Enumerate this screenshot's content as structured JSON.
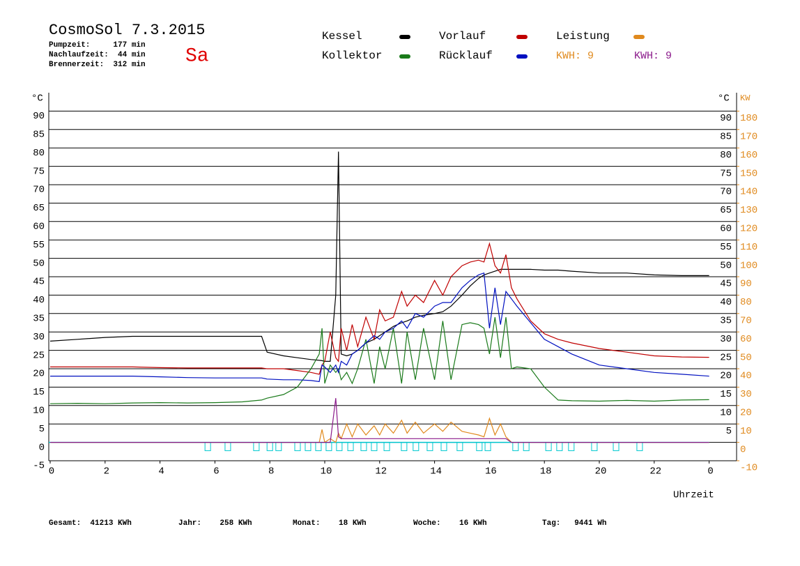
{
  "chart_data": {
    "type": "line",
    "title": "CosmoSol 7.3.2015",
    "info": [
      "Pumpzeit:     177 min",
      "Nachlaufzeit:  44 min",
      "Brennerzeit:  312 min"
    ],
    "day": "Sa",
    "kwh_labels": [
      {
        "text": "KWH: 9",
        "color": "#e08a1e"
      },
      {
        "text": "KWH: 9",
        "color": "#8b1a8b"
      }
    ],
    "totals": [
      "Gesamt:  41213 KWh",
      "Jahr:    258 KWh",
      "Monat:    18 KWh",
      "Woche:    16 KWh",
      "Tag:   9441 Wh"
    ],
    "xlabel": "Uhrzeit",
    "ylabel": "°C",
    "ylabel_right": "°C",
    "y2label": "KW",
    "x": [
      0,
      1,
      2,
      3,
      4,
      5,
      6,
      7,
      7.7,
      7.9,
      8.5,
      9,
      9.5,
      9.8,
      9.9,
      10,
      10.2,
      10.4,
      10.5,
      10.6,
      10.8,
      11,
      11.2,
      11.5,
      11.8,
      12,
      12.2,
      12.5,
      12.8,
      13,
      13.3,
      13.6,
      14,
      14.3,
      14.6,
      15,
      15.3,
      15.6,
      15.8,
      16,
      16.2,
      16.4,
      16.6,
      16.8,
      17,
      17.5,
      18,
      18.5,
      19,
      20,
      21,
      22,
      23,
      24
    ],
    "series": [
      {
        "name": "Kessel",
        "color": "#000000",
        "values": [
          27.5,
          28,
          28.5,
          28.8,
          28.8,
          28.8,
          28.8,
          28.8,
          28.8,
          24.5,
          23.5,
          23,
          22.5,
          22.3,
          22.2,
          22,
          22,
          40,
          79,
          24,
          23.5,
          24,
          25,
          27,
          28,
          29,
          30,
          31.5,
          32.5,
          33,
          34,
          34.5,
          35,
          35.5,
          37,
          40,
          42.5,
          44.5,
          45.5,
          46,
          46.5,
          47,
          47,
          47,
          47,
          47,
          46.8,
          46.8,
          46.5,
          46,
          46,
          45.5,
          45.3,
          45.3
        ]
      },
      {
        "name": "Vorlauf",
        "color": "#c00000",
        "values": [
          20.5,
          20.5,
          20.5,
          20.5,
          20.3,
          20.2,
          20.2,
          20.2,
          20.2,
          20,
          20,
          19.5,
          19,
          18.5,
          21,
          22,
          30,
          23,
          22,
          31,
          25,
          32,
          26,
          34,
          28,
          36,
          33,
          34,
          41,
          37,
          40,
          38,
          44,
          40,
          45,
          48,
          49,
          49.5,
          49,
          54,
          48,
          46,
          51,
          42,
          39,
          33,
          29.5,
          28,
          27,
          25.5,
          24.5,
          23.5,
          23.2,
          23.1
        ]
      },
      {
        "name": "Leistung",
        "color": "#e08a1e",
        "axis": "y2",
        "values": [
          0,
          0,
          0,
          0,
          0,
          0,
          0,
          0,
          0,
          0,
          0,
          0,
          0,
          0,
          7,
          0,
          2,
          0,
          5,
          2,
          10,
          3,
          10,
          4,
          9,
          4,
          10,
          5,
          12,
          5,
          11,
          5,
          10,
          6,
          11,
          6,
          5,
          4,
          3,
          13,
          4,
          10,
          3,
          0,
          0,
          0,
          0,
          0,
          0,
          0,
          0,
          0,
          0,
          0
        ]
      },
      {
        "name": "Kollektor",
        "color": "#1a7a1a",
        "values": [
          10.5,
          10.6,
          10.5,
          10.7,
          10.8,
          10.7,
          10.8,
          11,
          11.5,
          12,
          13,
          15,
          20,
          24,
          31,
          16,
          21,
          19,
          20,
          17,
          19,
          16,
          20,
          28,
          16,
          26,
          20,
          31,
          16,
          30,
          17,
          31,
          17,
          33,
          17,
          32,
          32.5,
          32,
          31,
          24,
          34,
          23,
          34,
          20,
          20.5,
          20,
          15,
          11.5,
          11.3,
          11.2,
          11.4,
          11.2,
          11.5,
          11.6
        ]
      },
      {
        "name": "Rücklauf",
        "color": "#0010c0",
        "values": [
          18,
          18,
          18,
          18,
          17.8,
          17.6,
          17.5,
          17.5,
          17.5,
          17.2,
          17,
          17,
          16.8,
          16.5,
          21,
          20.5,
          19,
          21,
          19,
          22,
          21,
          24,
          25,
          27,
          29,
          28,
          30,
          31,
          33,
          31,
          35,
          34,
          37,
          38,
          38,
          42,
          44,
          45.5,
          46,
          31,
          42,
          32,
          41,
          39,
          37,
          32.5,
          28,
          26,
          24,
          21,
          20,
          19,
          18.5,
          18
        ]
      },
      {
        "color": "#8b1a8b",
        "axis": "y2",
        "values": [
          0,
          0,
          0,
          0,
          0,
          0,
          0,
          0,
          0,
          0,
          0,
          0,
          0,
          0,
          0,
          0,
          0,
          24,
          3,
          2,
          2,
          2,
          2,
          2,
          2,
          2,
          2,
          2,
          2,
          2,
          2,
          2,
          2,
          2,
          2,
          2,
          2,
          2,
          2,
          2,
          2,
          2,
          2,
          0,
          0,
          0,
          0,
          0,
          0,
          0,
          0,
          0,
          0,
          0
        ]
      }
    ],
    "pump": {
      "color": "#00c8d0",
      "x": [
        5.74,
        6.47,
        7.51,
        8.0,
        8.32,
        9.01,
        9.39,
        9.77,
        10.15,
        10.53,
        10.94,
        11.42,
        11.8,
        12.26,
        12.89,
        13.32,
        13.83,
        14.34,
        14.92,
        15.63,
        15.94,
        16.95,
        17.34,
        18.15,
        18.55,
        18.98,
        19.82,
        20.61,
        21.47
      ]
    },
    "xlim": [
      0,
      25
    ],
    "xticks": [
      0,
      2,
      4,
      6,
      8,
      10,
      12,
      14,
      16,
      18,
      20,
      22,
      {
        "value": 24,
        "label": "0"
      }
    ],
    "ylim": [
      -5,
      95
    ],
    "yticks": [
      -5,
      0,
      5,
      10,
      15,
      20,
      25,
      30,
      35,
      40,
      45,
      50,
      55,
      60,
      65,
      70,
      75,
      80,
      85,
      90
    ],
    "yticks_right": [
      5,
      10,
      15,
      20,
      25,
      30,
      35,
      40,
      45,
      50,
      55,
      60,
      65,
      70,
      75,
      80,
      85,
      90
    ],
    "y2lim": [
      -10,
      190
    ],
    "y2ticks": [
      -10,
      0,
      10,
      20,
      30,
      40,
      50,
      60,
      70,
      80,
      90,
      100,
      110,
      120,
      130,
      140,
      150,
      160,
      170,
      180
    ],
    "grid": true
  }
}
